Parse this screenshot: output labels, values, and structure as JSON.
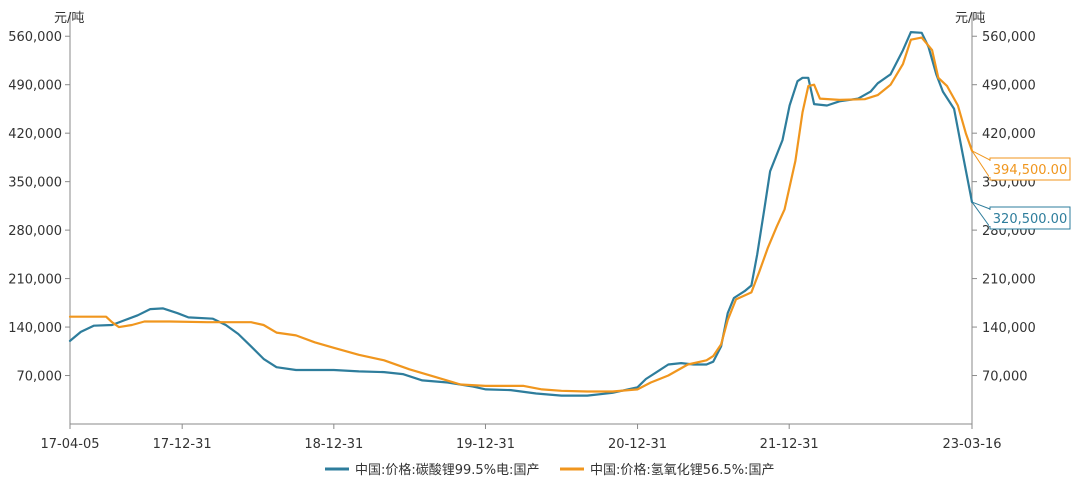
{
  "chart_data": {
    "type": "line",
    "y_unit_left": "元/吨",
    "y_unit_right": "元/吨",
    "ylim": [
      0,
      595000
    ],
    "y_ticks": [
      70000,
      140000,
      210000,
      280000,
      350000,
      420000,
      490000,
      560000
    ],
    "y_tick_labels": [
      "70,000",
      "140,000",
      "210,000",
      "280,000",
      "350,000",
      "420,000",
      "490,000",
      "560,000"
    ],
    "x_range": [
      "2017-04-05",
      "2023-03-16"
    ],
    "x_ticks": [
      "2017-04-05",
      "2017-12-31",
      "2018-12-31",
      "2019-12-31",
      "2020-12-31",
      "2021-12-31",
      "2023-03-16"
    ],
    "x_tick_labels": [
      "17-04-05",
      "17-12-31",
      "18-12-31",
      "19-12-31",
      "20-12-31",
      "21-12-31",
      "23-03-16"
    ],
    "grid": false,
    "legend_position": "bottom",
    "series": [
      {
        "name": "中国:价格:碳酸锂99.5%电:国产",
        "color": "#2e7d9c",
        "last_value_label": "320,500.00",
        "points": [
          [
            "2017-04-05",
            120000
          ],
          [
            "2017-05-01",
            133000
          ],
          [
            "2017-06-01",
            142000
          ],
          [
            "2017-07-15",
            143000
          ],
          [
            "2017-08-15",
            150000
          ],
          [
            "2017-09-15",
            157000
          ],
          [
            "2017-10-15",
            166000
          ],
          [
            "2017-11-15",
            167000
          ],
          [
            "2017-12-20",
            160000
          ],
          [
            "2018-01-15",
            154000
          ],
          [
            "2018-03-15",
            152000
          ],
          [
            "2018-04-15",
            143000
          ],
          [
            "2018-05-15",
            130000
          ],
          [
            "2018-06-15",
            112000
          ],
          [
            "2018-07-15",
            94000
          ],
          [
            "2018-08-15",
            82000
          ],
          [
            "2018-10-01",
            78000
          ],
          [
            "2018-12-31",
            78000
          ],
          [
            "2019-03-01",
            76000
          ],
          [
            "2019-05-01",
            75000
          ],
          [
            "2019-06-15",
            72000
          ],
          [
            "2019-08-01",
            63000
          ],
          [
            "2019-10-01",
            60000
          ],
          [
            "2019-12-01",
            54000
          ],
          [
            "2020-01-01",
            50000
          ],
          [
            "2020-03-01",
            49000
          ],
          [
            "2020-05-01",
            44000
          ],
          [
            "2020-07-01",
            41000
          ],
          [
            "2020-09-01",
            41000
          ],
          [
            "2020-11-01",
            45000
          ],
          [
            "2020-12-31",
            53000
          ],
          [
            "2021-01-20",
            65000
          ],
          [
            "2021-02-15",
            75000
          ],
          [
            "2021-03-15",
            86000
          ],
          [
            "2021-04-15",
            88000
          ],
          [
            "2021-05-15",
            86000
          ],
          [
            "2021-06-15",
            86000
          ],
          [
            "2021-07-01",
            90000
          ],
          [
            "2021-07-20",
            112000
          ],
          [
            "2021-08-05",
            160000
          ],
          [
            "2021-08-20",
            182000
          ],
          [
            "2021-09-15",
            192000
          ],
          [
            "2021-10-01",
            200000
          ],
          [
            "2021-10-15",
            245000
          ],
          [
            "2021-11-01",
            310000
          ],
          [
            "2021-11-15",
            365000
          ],
          [
            "2021-12-15",
            410000
          ],
          [
            "2022-01-01",
            460000
          ],
          [
            "2022-01-20",
            495000
          ],
          [
            "2022-02-01",
            500000
          ],
          [
            "2022-02-15",
            500000
          ],
          [
            "2022-03-01",
            462000
          ],
          [
            "2022-04-01",
            460000
          ],
          [
            "2022-05-01",
            466000
          ],
          [
            "2022-06-15",
            470000
          ],
          [
            "2022-07-15",
            480000
          ],
          [
            "2022-08-01",
            492000
          ],
          [
            "2022-09-01",
            505000
          ],
          [
            "2022-10-01",
            540000
          ],
          [
            "2022-10-20",
            566000
          ],
          [
            "2022-11-15",
            565000
          ],
          [
            "2022-12-01",
            545000
          ],
          [
            "2022-12-20",
            505000
          ],
          [
            "2023-01-05",
            480000
          ],
          [
            "2023-02-01",
            455000
          ],
          [
            "2023-02-20",
            395000
          ],
          [
            "2023-03-16",
            320500
          ]
        ]
      },
      {
        "name": "中国:价格:氢氧化锂56.5%:国产",
        "color": "#f0961e",
        "last_value_label": "394,500.00",
        "points": [
          [
            "2017-04-05",
            155000
          ],
          [
            "2017-07-01",
            155000
          ],
          [
            "2017-07-15",
            147000
          ],
          [
            "2017-08-01",
            140000
          ],
          [
            "2017-09-01",
            143000
          ],
          [
            "2017-10-01",
            148000
          ],
          [
            "2017-12-01",
            148000
          ],
          [
            "2018-03-01",
            147000
          ],
          [
            "2018-06-15",
            147000
          ],
          [
            "2018-07-15",
            143000
          ],
          [
            "2018-08-15",
            132000
          ],
          [
            "2018-10-01",
            128000
          ],
          [
            "2018-11-15",
            118000
          ],
          [
            "2018-12-31",
            110000
          ],
          [
            "2019-03-01",
            100000
          ],
          [
            "2019-05-01",
            92000
          ],
          [
            "2019-07-01",
            79000
          ],
          [
            "2019-09-01",
            68000
          ],
          [
            "2019-11-01",
            57000
          ],
          [
            "2019-12-31",
            55000
          ],
          [
            "2020-04-01",
            55000
          ],
          [
            "2020-05-15",
            50000
          ],
          [
            "2020-07-01",
            48000
          ],
          [
            "2020-09-01",
            47000
          ],
          [
            "2020-11-01",
            47000
          ],
          [
            "2020-12-31",
            50000
          ],
          [
            "2021-02-01",
            60000
          ],
          [
            "2021-03-15",
            70000
          ],
          [
            "2021-05-01",
            86000
          ],
          [
            "2021-06-15",
            92000
          ],
          [
            "2021-07-01",
            98000
          ],
          [
            "2021-07-20",
            115000
          ],
          [
            "2021-08-05",
            150000
          ],
          [
            "2021-08-25",
            180000
          ],
          [
            "2021-10-01",
            190000
          ],
          [
            "2021-10-20",
            220000
          ],
          [
            "2021-11-10",
            255000
          ],
          [
            "2021-12-01",
            285000
          ],
          [
            "2021-12-20",
            310000
          ],
          [
            "2022-01-15",
            380000
          ],
          [
            "2022-02-01",
            450000
          ],
          [
            "2022-02-15",
            488000
          ],
          [
            "2022-03-01",
            490000
          ],
          [
            "2022-03-15",
            470000
          ],
          [
            "2022-05-01",
            468000
          ],
          [
            "2022-07-01",
            469000
          ],
          [
            "2022-08-01",
            475000
          ],
          [
            "2022-09-01",
            490000
          ],
          [
            "2022-10-01",
            520000
          ],
          [
            "2022-10-20",
            555000
          ],
          [
            "2022-11-15",
            558000
          ],
          [
            "2022-12-10",
            540000
          ],
          [
            "2022-12-25",
            500000
          ],
          [
            "2023-01-15",
            488000
          ],
          [
            "2023-02-10",
            460000
          ],
          [
            "2023-03-01",
            420000
          ],
          [
            "2023-03-16",
            394500
          ]
        ]
      }
    ]
  }
}
